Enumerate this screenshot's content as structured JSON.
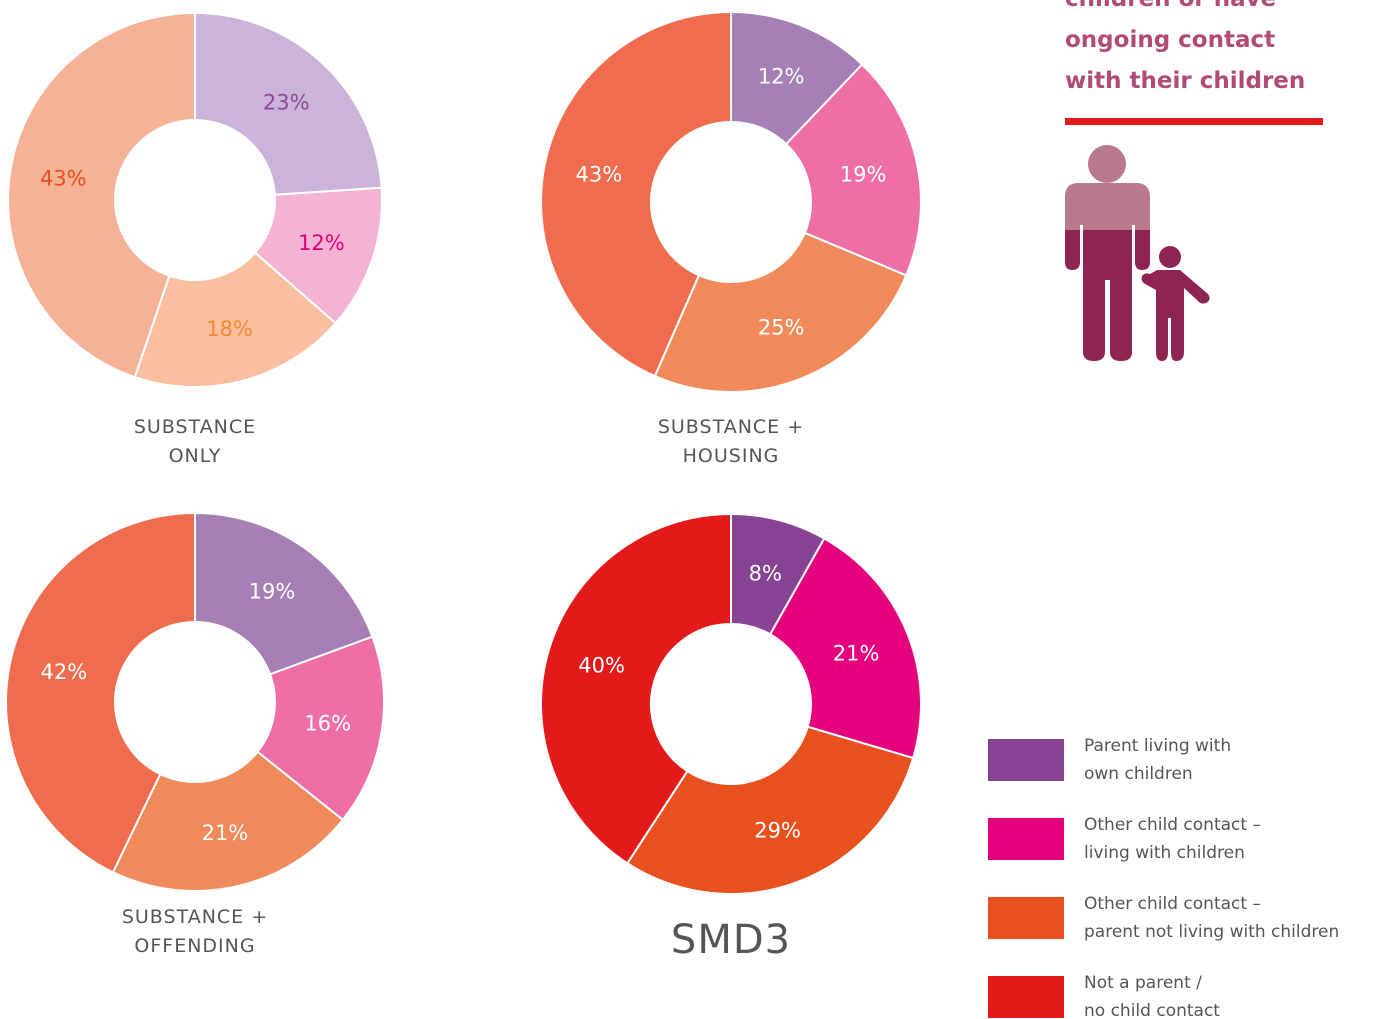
{
  "chart_data": [
    {
      "type": "pie",
      "title": "SUBSTANCE\nONLY",
      "values": [
        23,
        12,
        18,
        43
      ],
      "value_labels": [
        "23%",
        "12%",
        "18%",
        "43%"
      ],
      "colors": [
        "#cbb3d9",
        "#f5b3d3",
        "#f9bf9e",
        "#f5b297"
      ],
      "label_colors": [
        "#8a4a93",
        "#e0007b",
        "#f08a30",
        "#e8501e"
      ]
    },
    {
      "type": "pie",
      "title": "SUBSTANCE +\nHOUSING",
      "values": [
        12,
        19,
        25,
        43
      ],
      "value_labels": [
        "12%",
        "19%",
        "25%",
        "43%"
      ],
      "colors": [
        "#a67fb5",
        "#ee6fa6",
        "#f08a5a",
        "#ef6c4e"
      ],
      "label_colors": [
        "#ffffff",
        "#ffffff",
        "#ffffff",
        "#ffffff"
      ]
    },
    {
      "type": "pie",
      "title": "SUBSTANCE +\nOFFENDING",
      "values": [
        19,
        16,
        21,
        42
      ],
      "value_labels": [
        "19%",
        "16%",
        "21%",
        "42%"
      ],
      "colors": [
        "#a67fb5",
        "#ee6fa6",
        "#f08a5a",
        "#ef6c4e"
      ],
      "label_colors": [
        "#ffffff",
        "#ffffff",
        "#ffffff",
        "#ffffff"
      ]
    },
    {
      "type": "pie",
      "title": "SMD3",
      "values": [
        8,
        21,
        29,
        40
      ],
      "value_labels": [
        "8%",
        "21%",
        "29%",
        "40%"
      ],
      "colors": [
        "#874394",
        "#e5007e",
        "#e8501e",
        "#e3191a"
      ],
      "label_colors": [
        "#ffffff",
        "#ffffff",
        "#ffffff",
        "#ffffff"
      ]
    }
  ],
  "legend": {
    "categories": [
      "Parent living with\nown children",
      "Other child contact –\nliving with children",
      "Other child contact –\nparent not living with children",
      "Not a parent /\nno child contact"
    ],
    "colors": [
      "#874394",
      "#e5007e",
      "#e8501e",
      "#e3191a"
    ]
  },
  "callout": {
    "text": "children or have\nongoing contact\nwith their children"
  }
}
